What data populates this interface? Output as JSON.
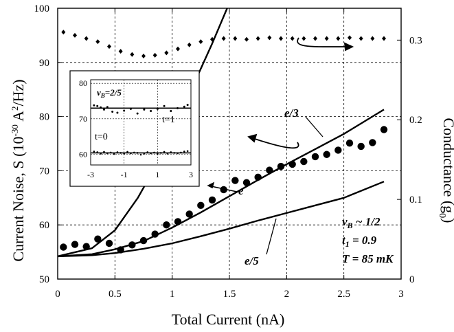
{
  "chart_data": {
    "type": "scatter",
    "title": "",
    "xlabel": "Total Current (nA)",
    "ylabel_left": "Current Noise, S",
    "ylabel_left_units": "(10",
    "ylabel_left_exp": "-30",
    "ylabel_left_rest": " A",
    "ylabel_left_sup2": "2",
    "ylabel_left_end": "/Hz)",
    "ylabel_right": "Conductance (g",
    "ylabel_right_sub": "0",
    "ylabel_right_end": ")",
    "xlim": [
      0,
      3
    ],
    "ylim_left": [
      50,
      100
    ],
    "ylim_right": [
      0,
      0.34
    ],
    "grid": "dashed",
    "x_ticks": [
      0,
      0.5,
      1,
      1.5,
      2,
      2.5,
      3
    ],
    "x_tick_labels": [
      "0",
      "0.5",
      "1",
      "1.5",
      "2",
      "2.5",
      "3"
    ],
    "y_left_ticks": [
      50,
      60,
      70,
      80,
      90,
      100
    ],
    "y_left_tick_labels": [
      "50",
      "60",
      "70",
      "80",
      "90",
      "100"
    ],
    "y_right_ticks": [
      0,
      0.1,
      0.2,
      0.3
    ],
    "y_right_tick_labels": [
      "0",
      "0.1",
      "0.2",
      "0.3"
    ],
    "noise_points": {
      "x": [
        0.05,
        0.15,
        0.25,
        0.35,
        0.45,
        0.55,
        0.65,
        0.75,
        0.85,
        0.95,
        1.05,
        1.15,
        1.25,
        1.35,
        1.45,
        1.55,
        1.65,
        1.75,
        1.85,
        1.95,
        2.05,
        2.15,
        2.25,
        2.35,
        2.45,
        2.55,
        2.65,
        2.75,
        2.85
      ],
      "y": [
        55.9,
        56.4,
        56.0,
        57.4,
        56.6,
        55.4,
        56.3,
        57.1,
        58.3,
        60.0,
        60.6,
        62.0,
        63.6,
        64.6,
        66.5,
        68.2,
        67.8,
        68.8,
        70.1,
        70.8,
        71.2,
        71.7,
        72.6,
        73.0,
        73.8,
        75.1,
        74.5,
        75.2,
        77.6
      ]
    },
    "conductance_points": {
      "x": [
        0.05,
        0.15,
        0.25,
        0.35,
        0.45,
        0.55,
        0.65,
        0.75,
        0.85,
        0.95,
        1.05,
        1.15,
        1.25,
        1.35,
        1.45,
        1.55,
        1.65,
        1.75,
        1.85,
        1.95,
        2.05,
        2.15,
        2.25,
        2.35,
        2.45,
        2.55,
        2.65,
        2.75,
        2.85
      ],
      "y": [
        0.31,
        0.306,
        0.302,
        0.298,
        0.292,
        0.286,
        0.282,
        0.28,
        0.281,
        0.284,
        0.289,
        0.294,
        0.298,
        0.301,
        0.302,
        0.302,
        0.301,
        0.302,
        0.303,
        0.302,
        0.302,
        0.302,
        0.302,
        0.302,
        0.302,
        0.303,
        0.302,
        0.302,
        0.302
      ]
    },
    "curves": [
      {
        "name": "e",
        "x": [
          0,
          0.3,
          0.5,
          0.7,
          0.9,
          1.05,
          1.2,
          1.35,
          1.48
        ],
        "y": [
          54.2,
          55.7,
          59.0,
          65.0,
          72.5,
          79.5,
          86.5,
          93.5,
          100
        ]
      },
      {
        "name": "e/3",
        "x": [
          0,
          0.3,
          0.5,
          0.75,
          1.0,
          1.25,
          1.5,
          1.75,
          2.0,
          2.25,
          2.5,
          2.85
        ],
        "y": [
          54.2,
          54.6,
          55.5,
          57.0,
          59.5,
          62.3,
          65.3,
          68.3,
          71.2,
          74.0,
          76.8,
          81.3
        ]
      },
      {
        "name": "e/5",
        "x": [
          0,
          0.3,
          0.5,
          0.75,
          1.0,
          1.25,
          1.5,
          1.75,
          2.0,
          2.25,
          2.5,
          2.85
        ],
        "y": [
          54.2,
          54.4,
          54.8,
          55.6,
          56.6,
          57.9,
          59.3,
          60.8,
          62.2,
          63.6,
          65.0,
          68.0
        ]
      }
    ],
    "annotations": {
      "e": "e",
      "e3": "e/3",
      "e5": "e/5",
      "nu": "ν",
      "nu_sub": "B",
      "nu_rest": " ~ 1/2",
      "t": "t",
      "t_sub": "1",
      "t_rest": " = 0.9",
      "temp": "T = 85 mK"
    },
    "inset": {
      "xlim": [
        -3,
        3
      ],
      "ylim": [
        57,
        81
      ],
      "x_ticks": [
        -3,
        -1,
        1,
        3
      ],
      "x_tick_labels": [
        "-3",
        "-1",
        "1",
        "3"
      ],
      "y_ticks": [
        60,
        70,
        80
      ],
      "y_tick_labels": [
        "60",
        "70",
        "80"
      ],
      "nu": "ν",
      "nu_sub": "B",
      "nu_rest": "=2/5",
      "t1": "t=1",
      "t0": "t=0",
      "level_t1": 73,
      "level_t0": 60.4,
      "t1_points": {
        "x": [
          -2.8,
          -2.6,
          -2.4,
          -2.2,
          -2.0,
          -1.7,
          -1.4,
          -1.0,
          -0.6,
          -0.2,
          0.2,
          0.6,
          1.0,
          1.4,
          1.8,
          2.2,
          2.6,
          2.8
        ],
        "y": [
          73.8,
          73.6,
          73.2,
          72.6,
          73.3,
          72.0,
          71.7,
          72.3,
          72.8,
          71.5,
          72.6,
          72.2,
          72.8,
          73.6,
          72.2,
          73.0,
          73.4,
          73.9
        ]
      },
      "t0_points": {
        "x": [
          -2.8,
          -2.6,
          -2.4,
          -2.2,
          -2.0,
          -1.8,
          -1.6,
          -1.4,
          -1.2,
          -1.0,
          -0.8,
          -0.6,
          -0.4,
          -0.2,
          0.0,
          0.2,
          0.4,
          0.6,
          0.8,
          1.0,
          1.2,
          1.4,
          1.6,
          1.8,
          2.0,
          2.2,
          2.4,
          2.6,
          2.8
        ],
        "y": [
          60.8,
          60.6,
          60.2,
          60.7,
          60.3,
          60.5,
          60.1,
          60.6,
          60.4,
          60.2,
          60.7,
          60.3,
          60.5,
          60.4,
          59.9,
          60.2,
          60.6,
          60.3,
          60.5,
          60.1,
          60.4,
          60.7,
          60.2,
          60.6,
          60.4,
          60.3,
          60.5,
          60.8,
          60.9
        ]
      }
    }
  }
}
